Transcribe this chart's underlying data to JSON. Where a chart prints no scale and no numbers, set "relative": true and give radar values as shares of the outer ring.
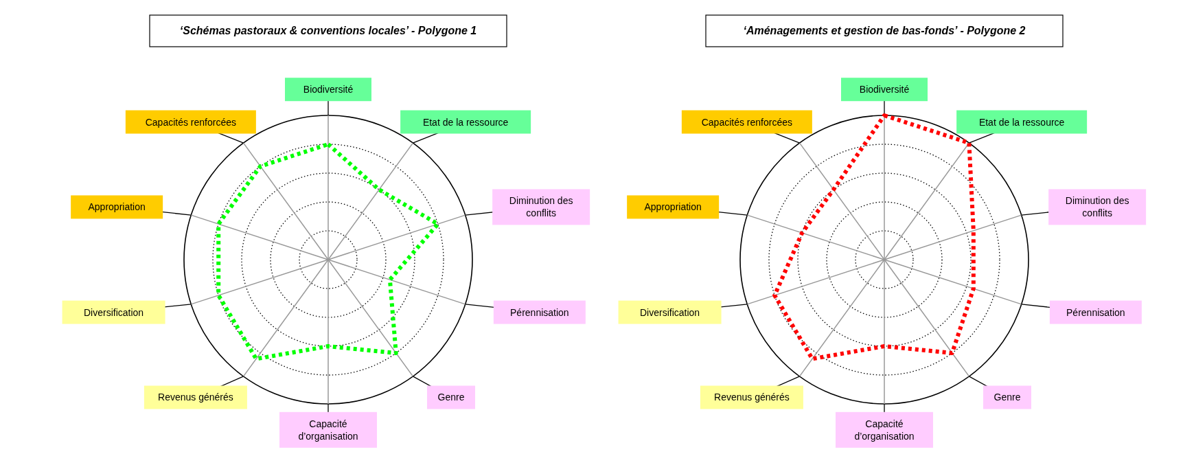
{
  "chart_data": [
    {
      "type": "radar",
      "title": "‘Schémas pastoraux & conventions locales’ - Polygone 1",
      "categories": [
        "Biodiversité",
        "Etat de la ressource",
        "Diminution des conflits",
        "Pérennisation",
        "Genre",
        "Capacité d’organisation",
        "Revenus générés",
        "Diversification",
        "Appropriation",
        "Capacités renforcées"
      ],
      "relative": true,
      "grid": true,
      "line_style": "dotted",
      "series": [
        {
          "color": "#00ff00",
          "values": [
            0.8,
            0.6,
            0.8,
            0.45,
            0.8,
            0.6,
            0.85,
            0.8,
            0.8,
            0.8
          ]
        }
      ]
    },
    {
      "type": "radar",
      "title": "‘Aménagements et gestion de bas-fonds’ - Polygone 2",
      "categories": [
        "Biodiversité",
        "Etat de la ressource",
        "Diminution des conflits",
        "Pérennisation",
        "Genre",
        "Capacité d’organisation",
        "Revenus générés",
        "Diversification",
        "Appropriation",
        "Capacités renforcées"
      ],
      "relative": true,
      "grid": true,
      "line_style": "dotted",
      "series": [
        {
          "color": "#ff0000",
          "values": [
            1,
            1,
            0.65,
            0.65,
            0.8,
            0.6,
            0.85,
            0.8,
            0.6,
            0.6
          ]
        }
      ]
    }
  ]
}
